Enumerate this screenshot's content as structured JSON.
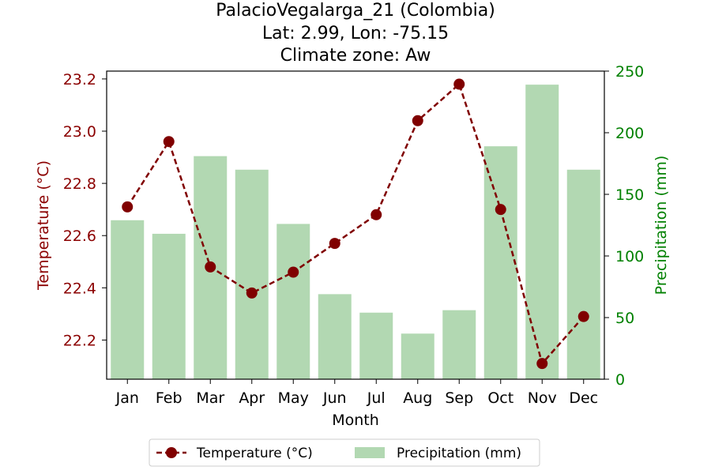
{
  "chart_data": {
    "type": "bar+line",
    "title_lines": [
      "PalacioVegalarga_21 (Colombia)",
      "Lat: 2.99, Lon: -75.15",
      "Climate zone: Aw"
    ],
    "xlabel": "Month",
    "ylabel_left": "Temperature (°C)",
    "ylabel_right": "Precipitation (mm)",
    "categories": [
      "Jan",
      "Feb",
      "Mar",
      "Apr",
      "May",
      "Jun",
      "Jul",
      "Aug",
      "Sep",
      "Oct",
      "Nov",
      "Dec"
    ],
    "temperature": {
      "name": "Temperature (°C)",
      "values": [
        22.71,
        22.96,
        22.48,
        22.38,
        22.46,
        22.57,
        22.68,
        23.04,
        23.18,
        22.7,
        22.11,
        22.29
      ],
      "color": "#800000",
      "ylim": [
        22.05,
        23.23
      ],
      "ticks": [
        "22.2",
        "22.4",
        "22.6",
        "22.8",
        "23.0",
        "23.2"
      ]
    },
    "precipitation": {
      "name": "Precipitation (mm)",
      "values": [
        129,
        118,
        181,
        170,
        126,
        69,
        54,
        37,
        56,
        189,
        239,
        170
      ],
      "color": "#b2d8b2",
      "ylim": [
        0,
        250
      ],
      "ticks": [
        "0",
        "50",
        "100",
        "150",
        "200",
        "250"
      ]
    },
    "grid": false,
    "legend_position": "bottom-center",
    "axis_colors": {
      "left": "#8b0000",
      "right": "#008000"
    }
  }
}
